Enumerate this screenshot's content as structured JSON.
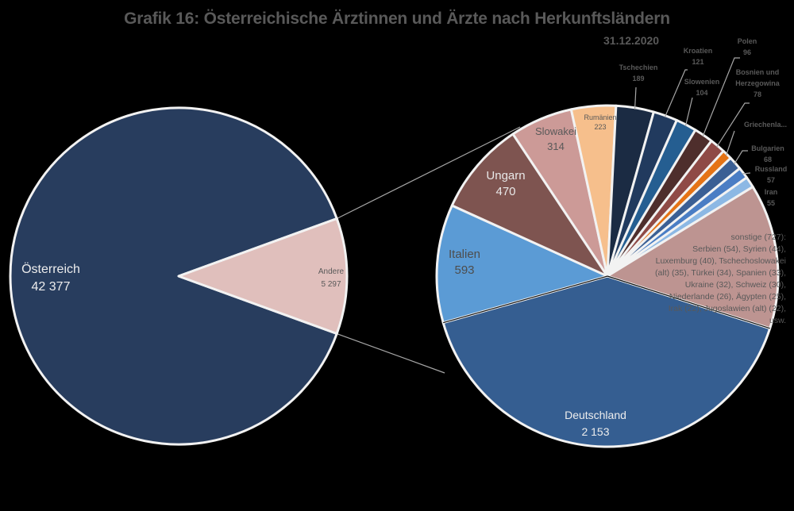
{
  "title": "Grafik 16: Österreichische Ärztinnen und Ärzte nach Herkunftsländern",
  "subtitle": "31.12.2020",
  "chart_data": {
    "type": "pie",
    "title": "Grafik 16: Österreichische Ärztinnen und Ärzte nach Herkunftsländern",
    "subtitle": "31.12.2020",
    "variant": "pie-of-pie (bar-of-pie style breakout)",
    "legend": "none (data labels on slices)",
    "main_pie": {
      "categories": [
        "Österreich",
        "Andere"
      ],
      "values": [
        42377,
        5297
      ],
      "labels": [
        "Österreich\n42 377",
        "Andere\n5 297"
      ],
      "colors": [
        "#283D5E",
        "#E0BFBC"
      ]
    },
    "secondary_pie": {
      "breakout_of": "Andere",
      "categories": [
        "Deutschland",
        "Italien",
        "Ungarn",
        "Slowakei",
        "Rumänien",
        "Tschechien",
        "Kroatien",
        "Slowenien",
        "Polen",
        "Bosnien und Herzegowina",
        "Griechenla...",
        "Bulgarien",
        "Russland",
        "Iran",
        "sonstige"
      ],
      "values": [
        2153,
        593,
        470,
        314,
        223,
        189,
        121,
        104,
        96,
        78,
        49,
        68,
        57,
        55,
        727
      ],
      "value_labels": [
        "2 153",
        "593",
        "470",
        "314",
        "223",
        "189",
        "121",
        "104",
        "96",
        "78",
        "",
        "68",
        "57",
        "55",
        "727"
      ],
      "colors": [
        "#355E91",
        "#5B9BD5",
        "#7E5450",
        "#CC9A97",
        "#F6BF8C",
        "#1B2B43",
        "#213A5E",
        "#255E91",
        "#4E2E2C",
        "#8F4A46",
        "#E57315",
        "#3B5F94",
        "#4A7DC4",
        "#8CB8E4",
        "#BD9491"
      ],
      "sonstige_detail": "sonstige (727): Serbien (54), Syrien (44), Luxemburg (40), Tschechoslowakei (alt) (35), Türkei (34), Spanien (33), Ukraine (32), Schweiz (30), Niederlande (26), Ägypten (25), Irak (22), Jugoslawien (alt) (22), usw."
    }
  },
  "labels": {
    "oesterreich": {
      "name": "Österreich",
      "value": "42 377"
    },
    "andere": {
      "name": "Andere",
      "value": "5 297"
    },
    "deutschland": {
      "name": "Deutschland",
      "value": "2 153"
    },
    "italien": {
      "name": "Italien",
      "value": "593"
    },
    "ungarn": {
      "name": "Ungarn",
      "value": "470"
    },
    "slowakei": {
      "name": "Slowakei",
      "value": "314"
    },
    "rumaenien": {
      "name": "Rumänien",
      "value": "223"
    },
    "tschechien": {
      "name": "Tschechien",
      "value": "189"
    },
    "kroatien": {
      "name": "Kroatien",
      "value": "121"
    },
    "slowenien": {
      "name": "Slowenien",
      "value": "104"
    },
    "polen": {
      "name": "Polen",
      "value": "96"
    },
    "bosnien": {
      "line1": "Bosnien und",
      "line2": "Herzegowina",
      "value": "78"
    },
    "griechenland": {
      "name": "Griechenla..."
    },
    "bulgarien": {
      "name": "Bulgarien",
      "value": "68"
    },
    "russland": {
      "name": "Russland",
      "value": "57"
    },
    "iran": {
      "name": "Iran",
      "value": "55"
    },
    "sonstige": {
      "lines": [
        "sonstige (727):",
        "Serbien (54), Syrien (44),",
        "Luxemburg (40), Tschechoslowakei",
        "(alt) (35), Türkei (34), Spanien (33),",
        "Ukraine (32), Schweiz (30),",
        "Niederlande (26), Ägypten (25),",
        "Irak (22), Jugoslawien (alt) (22),",
        "usw."
      ]
    }
  }
}
